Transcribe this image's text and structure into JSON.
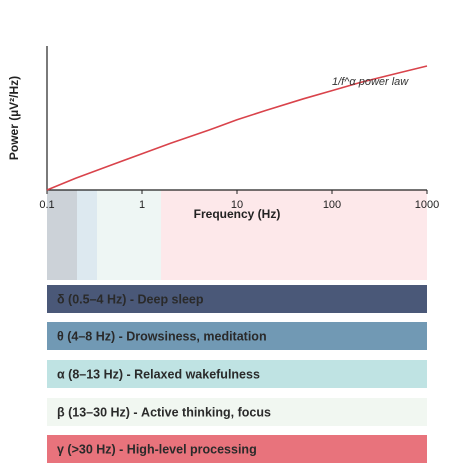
{
  "chart_data": {
    "type": "line",
    "xlabel": "Frequency (Hz)",
    "ylabel": "Power (µV²/Hz)",
    "xscale": "log",
    "xlim": [
      0.1,
      1000
    ],
    "x_ticks": [
      "0.1",
      "1",
      "10",
      "100",
      "1000"
    ],
    "grid": false,
    "series": [
      {
        "name": "1/f^α power law",
        "color": "#d9434b",
        "x": [
          0.1,
          0.2,
          0.5,
          1,
          2,
          5,
          10,
          20,
          50,
          100,
          200,
          500,
          1000
        ],
        "y": [
          0.0,
          0.1,
          0.22,
          0.31,
          0.4,
          0.51,
          0.6,
          0.68,
          0.78,
          0.85,
          0.92,
          1.0,
          1.06
        ]
      }
    ],
    "annotation": "1/f^α power law",
    "bands": [
      {
        "label": "δ (0.5–4 Hz) - Deep sleep",
        "range": [
          0.5,
          4
        ],
        "color": "#4a5878"
      },
      {
        "label": "θ (4–8 Hz) - Drowsiness, meditation",
        "range": [
          4,
          8
        ],
        "color": "#7199b4"
      },
      {
        "label": "α (8–13 Hz) - Relaxed wakefulness",
        "range": [
          8,
          13
        ],
        "color": "#bfe3e3"
      },
      {
        "label": "β (13–30 Hz) - Active thinking, focus",
        "range": [
          13,
          30
        ],
        "color": "#f1f7f1"
      },
      {
        "label": "γ (>30 Hz) - High-level processing",
        "range": [
          30,
          1000
        ],
        "color": "#e8737c"
      }
    ]
  }
}
